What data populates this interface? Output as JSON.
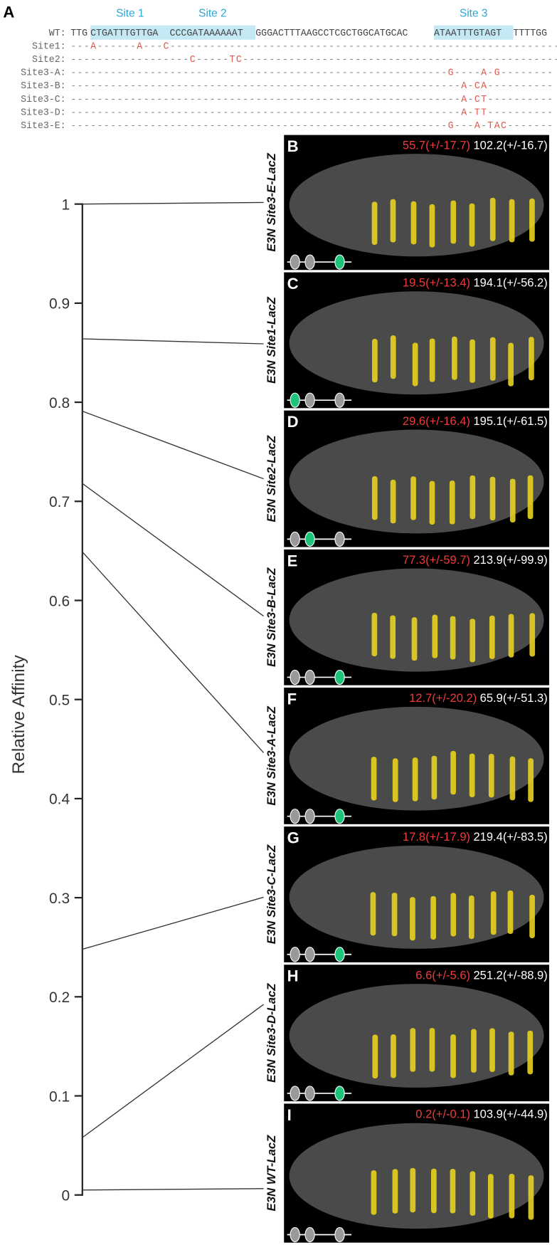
{
  "panel_a": {
    "label": "A",
    "sites": [
      "Site 1",
      "Site 2",
      "Site 3"
    ],
    "wt": {
      "label": "WT:",
      "segments": [
        "TTG",
        "CTGATTTGTTGA",
        "CCCGATAAAAAAT",
        "GGGACTTTAAGCCTCGCTGGCATGCAC",
        "ATAATTTGTAGT",
        "TTTTGG"
      ]
    },
    "mutants": [
      {
        "label": "Site1:",
        "sequence": "---A------A---C-----------------------------------------------------------"
      },
      {
        "label": "Site2:",
        "sequence": "------------------C-----TC-------------------------------------------------"
      },
      {
        "label": "Site3-A:",
        "sequence": "---------------------------------------------------------G----A-G--------"
      },
      {
        "label": "Site3-B:",
        "sequence": "-----------------------------------------------------------A-CA----------"
      },
      {
        "label": "Site3-C:",
        "sequence": "-----------------------------------------------------------A-CT----------"
      },
      {
        "label": "Site3-D:",
        "sequence": "-----------------------------------------------------------A-TT----------"
      },
      {
        "label": "Site3-E:",
        "sequence": "---------------------------------------------------------G---A-TAC-------"
      }
    ]
  },
  "axis": {
    "label": "Relative Affinity",
    "ylim": [
      0,
      1
    ],
    "yticks": [
      0,
      0.1,
      0.2,
      0.3,
      0.4,
      0.5,
      0.6,
      0.7,
      0.8,
      0.9,
      1
    ]
  },
  "panels": [
    {
      "letter": "B",
      "construct": "E3N Site3-E-LacZ",
      "red": "55.7(+/-17.7)",
      "white": "102.2(+/-16.7)",
      "affinity": 1
    },
    {
      "letter": "C",
      "construct": "E3N Site1-LacZ",
      "red": "19.5(+/-13.4)",
      "white": "194.1(+/-56.2)",
      "affinity": 0.864
    },
    {
      "letter": "D",
      "construct": "E3N Site2-LacZ",
      "red": "29.6(+/-16.4)",
      "white": "195.1(+/-61.5)",
      "affinity": 0.791
    },
    {
      "letter": "E",
      "construct": "E3N Site3-B-LacZ",
      "red": "77.3(+/-59.7)",
      "white": "213.9(+/-99.9)",
      "affinity": 0.718
    },
    {
      "letter": "F",
      "construct": "E3N Site3-A-LacZ",
      "red": "12.7(+/-20.2)",
      "white": "65.9(+/-51.3)",
      "affinity": 0.649
    },
    {
      "letter": "G",
      "construct": "E3N Site3-C-LacZ",
      "red": "17.8(+/-17.9)",
      "white": "219.4(+/-83.5)",
      "affinity": 0.248
    },
    {
      "letter": "H",
      "construct": "E3N Site3-D-LacZ",
      "red": "6.6(+/-5.6)",
      "white": "251.2(+/-88.9)",
      "affinity": 0.058
    },
    {
      "letter": "I",
      "construct": "E3N WT-LacZ",
      "red": "0.2(+/-0.1)",
      "white": "103.9(+/-44.9)",
      "affinity": 0.005
    }
  ]
}
